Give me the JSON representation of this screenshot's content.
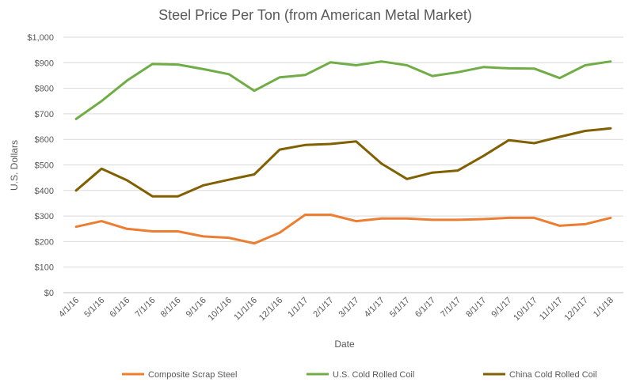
{
  "chart_data": {
    "type": "line",
    "title": "Steel Price Per Ton (from American Metal Market)",
    "xlabel": "Date",
    "ylabel": "U.S. Dollars",
    "ylim": [
      0,
      1000
    ],
    "y_ticks": [
      "$0",
      "$100",
      "$200",
      "$300",
      "$400",
      "$500",
      "$600",
      "$700",
      "$800",
      "$900",
      "$1,000"
    ],
    "grid": true,
    "legend_position": "bottom",
    "x": [
      "4/1/16",
      "5/1/16",
      "6/1/16",
      "7/1/16",
      "8/1/16",
      "9/1/16",
      "10/1/16",
      "11/1/16",
      "12/1/16",
      "1/1/17",
      "2/1/17",
      "3/1/17",
      "4/1/17",
      "5/1/17",
      "6/1/17",
      "7/1/17",
      "8/1/17",
      "9/1/17",
      "10/1/17",
      "11/1/17",
      "12/1/17",
      "1/1/18"
    ],
    "series": [
      {
        "name": "Composite Scrap Steel",
        "color": "#ED7D31",
        "values": [
          258,
          280,
          250,
          240,
          240,
          220,
          215,
          193,
          235,
          305,
          305,
          280,
          290,
          290,
          285,
          285,
          288,
          293,
          293,
          262,
          268,
          293
        ]
      },
      {
        "name": "U.S. Cold Rolled Coil",
        "color": "#70AD47",
        "values": [
          680,
          750,
          830,
          895,
          893,
          875,
          855,
          790,
          843,
          852,
          902,
          890,
          905,
          890,
          848,
          863,
          883,
          878,
          877,
          840,
          890,
          905
        ]
      },
      {
        "name": "China Cold Rolled Coil",
        "color": "#806000",
        "values": [
          400,
          485,
          440,
          377,
          377,
          420,
          442,
          463,
          560,
          578,
          582,
          592,
          505,
          445,
          470,
          478,
          535,
          597,
          585,
          610,
          633,
          643
        ]
      }
    ]
  }
}
